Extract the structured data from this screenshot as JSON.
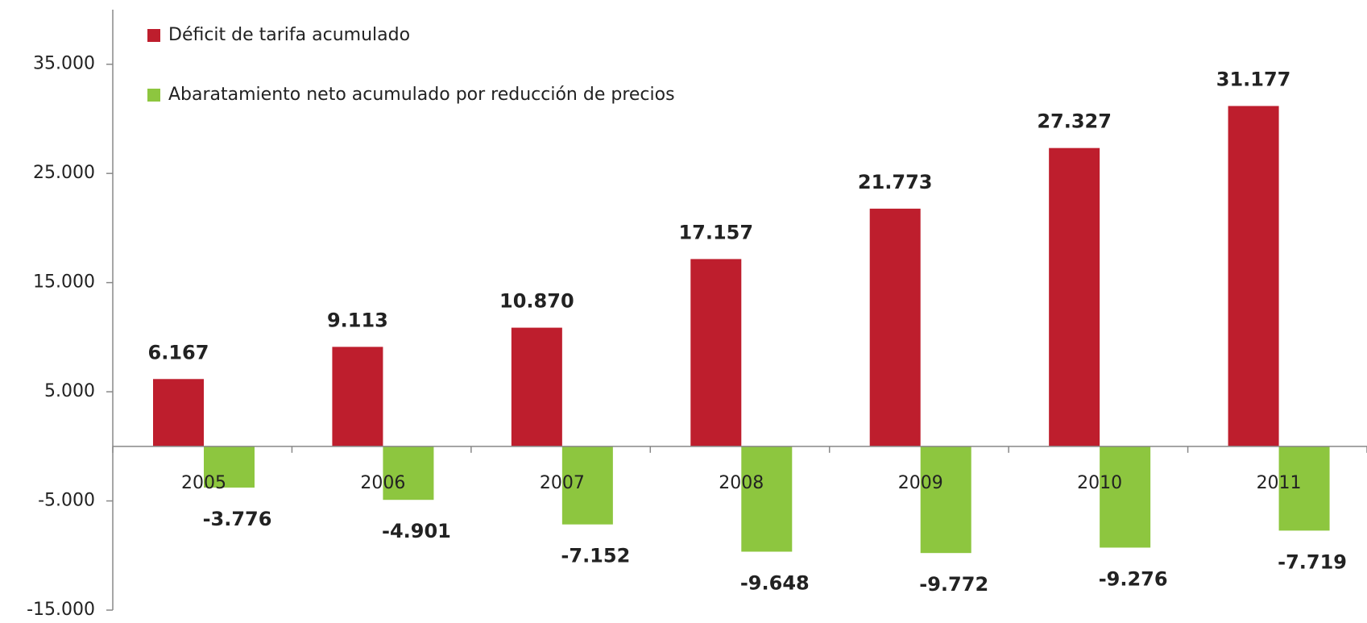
{
  "chart_data": {
    "type": "bar",
    "categories": [
      "2005",
      "2006",
      "2007",
      "2008",
      "2009",
      "2010",
      "2011"
    ],
    "series": [
      {
        "name": "Déficit de tarifa acumulado",
        "color": "#be1e2d",
        "values": [
          6167,
          9113,
          10870,
          17157,
          21773,
          27327,
          31177
        ],
        "value_labels": [
          "6.167",
          "9.113",
          "10.870",
          "17.157",
          "21.773",
          "27.327",
          "31.177"
        ]
      },
      {
        "name": "Abaratamiento neto acumulado por reducción de precios",
        "color": "#8dc63f",
        "values": [
          -3776,
          -4901,
          -7152,
          -9648,
          -9772,
          -9276,
          -7719
        ],
        "value_labels": [
          "-3.776",
          "-4.901",
          "-7.152",
          "-9.648",
          "-9.772",
          "-9.276",
          "-7.719"
        ]
      }
    ],
    "ylim": [
      -15000,
      40000
    ],
    "yticks": [
      {
        "value": -15000,
        "label": "-15.000"
      },
      {
        "value": -5000,
        "label": "-5.000"
      },
      {
        "value": 5000,
        "label": "5.000"
      },
      {
        "value": 15000,
        "label": "15.000"
      },
      {
        "value": 25000,
        "label": "25.000"
      },
      {
        "value": 35000,
        "label": "35.000"
      }
    ],
    "legend": "top-left"
  }
}
